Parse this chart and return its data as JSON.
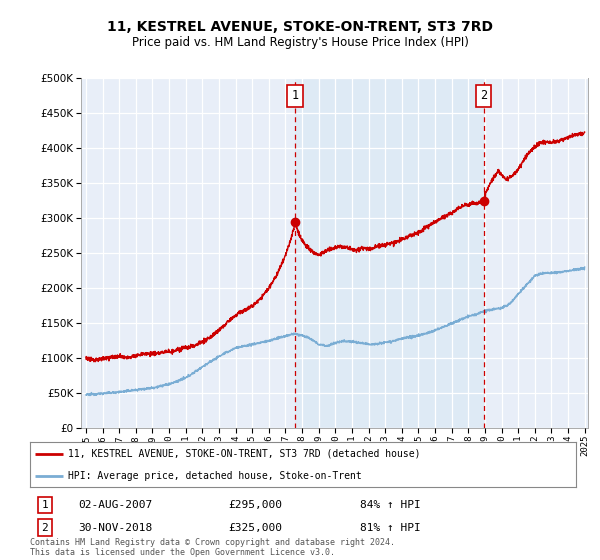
{
  "title": "11, KESTREL AVENUE, STOKE-ON-TRENT, ST3 7RD",
  "subtitle": "Price paid vs. HM Land Registry's House Price Index (HPI)",
  "legend_line1": "11, KESTREL AVENUE, STOKE-ON-TRENT, ST3 7RD (detached house)",
  "legend_line2": "HPI: Average price, detached house, Stoke-on-Trent",
  "footnote": "Contains HM Land Registry data © Crown copyright and database right 2024.\nThis data is licensed under the Open Government Licence v3.0.",
  "sale1_label": "1",
  "sale1_date": "02-AUG-2007",
  "sale1_price": "£295,000",
  "sale1_hpi": "84% ↑ HPI",
  "sale2_label": "2",
  "sale2_date": "30-NOV-2018",
  "sale2_price": "£325,000",
  "sale2_hpi": "81% ↑ HPI",
  "sale1_year": 2007.58,
  "sale2_year": 2018.92,
  "sale1_value": 295000,
  "sale2_value": 325000,
  "hpi_color": "#7aadd4",
  "price_color": "#cc0000",
  "background_color": "#e8eef8",
  "band_color": "#d8e8f4",
  "ylim": [
    0,
    500000
  ],
  "xlim_start": 1995,
  "xlim_end": 2025,
  "yticks": [
    0,
    50000,
    100000,
    150000,
    200000,
    250000,
    300000,
    350000,
    400000,
    450000,
    500000
  ],
  "xtick_years": [
    1995,
    1996,
    1997,
    1998,
    1999,
    2000,
    2001,
    2002,
    2003,
    2004,
    2005,
    2006,
    2007,
    2008,
    2009,
    2010,
    2011,
    2012,
    2013,
    2014,
    2015,
    2016,
    2017,
    2018,
    2019,
    2020,
    2021,
    2022,
    2023,
    2024,
    2025
  ]
}
